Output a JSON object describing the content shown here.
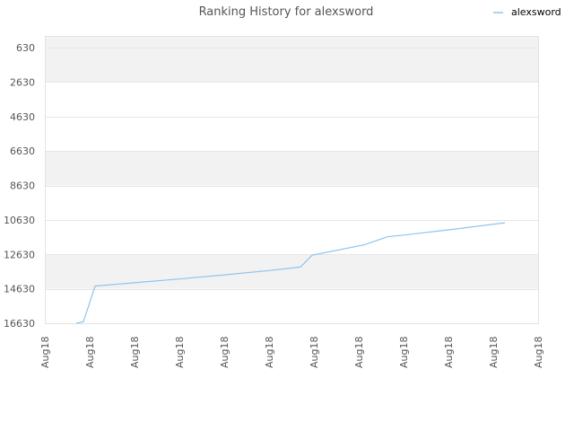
{
  "chart_data": {
    "type": "line",
    "title": "Ranking History for alexsword",
    "xlabel": "",
    "ylabel": "",
    "y_inverted": true,
    "ylim": [
      630,
      16630
    ],
    "y_ticks": [
      630,
      2630,
      4630,
      6630,
      8630,
      10630,
      12630,
      14630,
      16630
    ],
    "x_ticks": [
      "Aug18",
      "Aug18",
      "Aug18",
      "Aug18",
      "Aug18",
      "Aug18",
      "Aug18",
      "Aug18",
      "Aug18",
      "Aug18",
      "Aug18",
      "Aug18"
    ],
    "xlim": [
      0,
      11
    ],
    "legend": {
      "position": "top-right"
    },
    "grid": true,
    "band_color": "#f2f2f2",
    "series": [
      {
        "name": "alexsword",
        "color": "#90c4ec",
        "points": [
          {
            "x": 0.7,
            "y": 16630
          },
          {
            "x": 0.86,
            "y": 16540
          },
          {
            "x": 1.12,
            "y": 14470
          },
          {
            "x": 2.0,
            "y": 14280
          },
          {
            "x": 3.0,
            "y": 14060
          },
          {
            "x": 4.0,
            "y": 13820
          },
          {
            "x": 5.0,
            "y": 13570
          },
          {
            "x": 5.7,
            "y": 13370
          },
          {
            "x": 5.96,
            "y": 12680
          },
          {
            "x": 7.12,
            "y": 12080
          },
          {
            "x": 7.64,
            "y": 11610
          },
          {
            "x": 8.0,
            "y": 11510
          },
          {
            "x": 9.0,
            "y": 11210
          },
          {
            "x": 10.26,
            "y": 10800
          }
        ]
      }
    ]
  }
}
